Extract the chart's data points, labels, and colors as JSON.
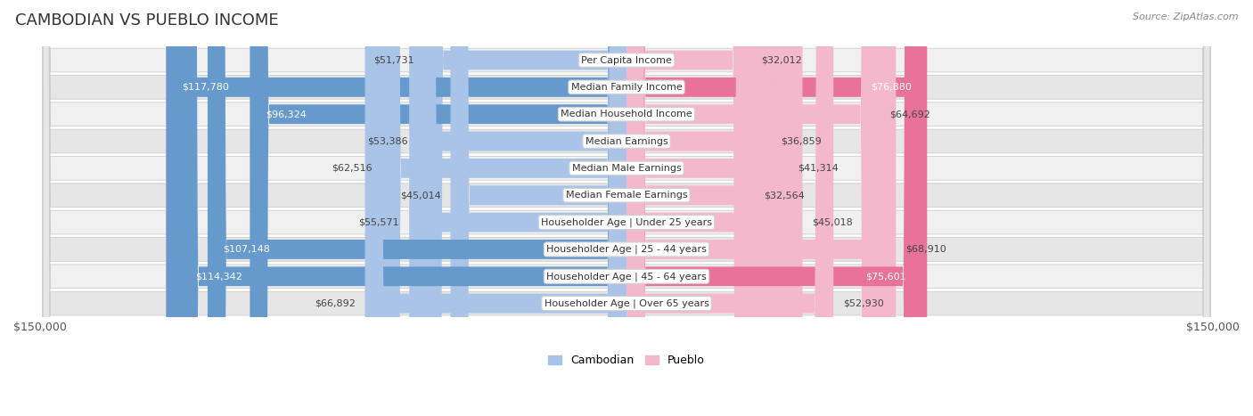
{
  "title": "CAMBODIAN VS PUEBLO INCOME",
  "source": "Source: ZipAtlas.com",
  "max_value": 150000,
  "categories": [
    "Per Capita Income",
    "Median Family Income",
    "Median Household Income",
    "Median Earnings",
    "Median Male Earnings",
    "Median Female Earnings",
    "Householder Age | Under 25 years",
    "Householder Age | 25 - 44 years",
    "Householder Age | 45 - 64 years",
    "Householder Age | Over 65 years"
  ],
  "cambodian_values": [
    51731,
    117780,
    96324,
    53386,
    62516,
    45014,
    55571,
    107148,
    114342,
    66892
  ],
  "pueblo_values": [
    32012,
    76880,
    64692,
    36859,
    41314,
    32564,
    45018,
    68910,
    75601,
    52930
  ],
  "cambodian_light": "#aac4e8",
  "cambodian_dark": "#6699cc",
  "pueblo_light": "#f4b8cc",
  "pueblo_dark": "#e8729a",
  "bg_color": "#ffffff",
  "row_bg_even": "#f0f0f0",
  "row_bg_odd": "#e6e6e6",
  "title_fontsize": 13,
  "label_fontsize": 8,
  "value_fontsize": 8,
  "legend_fontsize": 9,
  "camb_threshold": 80000,
  "pueb_threshold": 70000
}
